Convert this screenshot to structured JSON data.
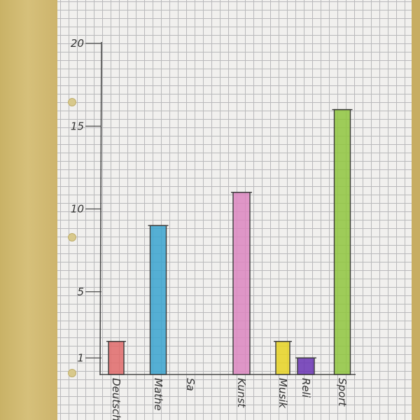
{
  "chart_data": {
    "type": "bar",
    "title": "",
    "xlabel": "",
    "ylabel": "",
    "categories": [
      "Deutsch",
      "Mathe",
      "Sa",
      "Kunst",
      "Musik",
      "Reli",
      "Sport"
    ],
    "values": [
      2,
      9,
      0,
      11,
      2,
      1,
      16
    ],
    "colors": [
      "#e06a6a",
      "#3aa3cf",
      "#999999",
      "#dc86c0",
      "#e8d422",
      "#6a34b4",
      "#8fc53e"
    ],
    "yticks": [
      1,
      5,
      10,
      15,
      20
    ],
    "ytick_labels": [
      "1",
      "5",
      "10",
      "15",
      "20"
    ],
    "ylim": [
      0,
      20
    ],
    "grid": true,
    "legend": "none"
  }
}
